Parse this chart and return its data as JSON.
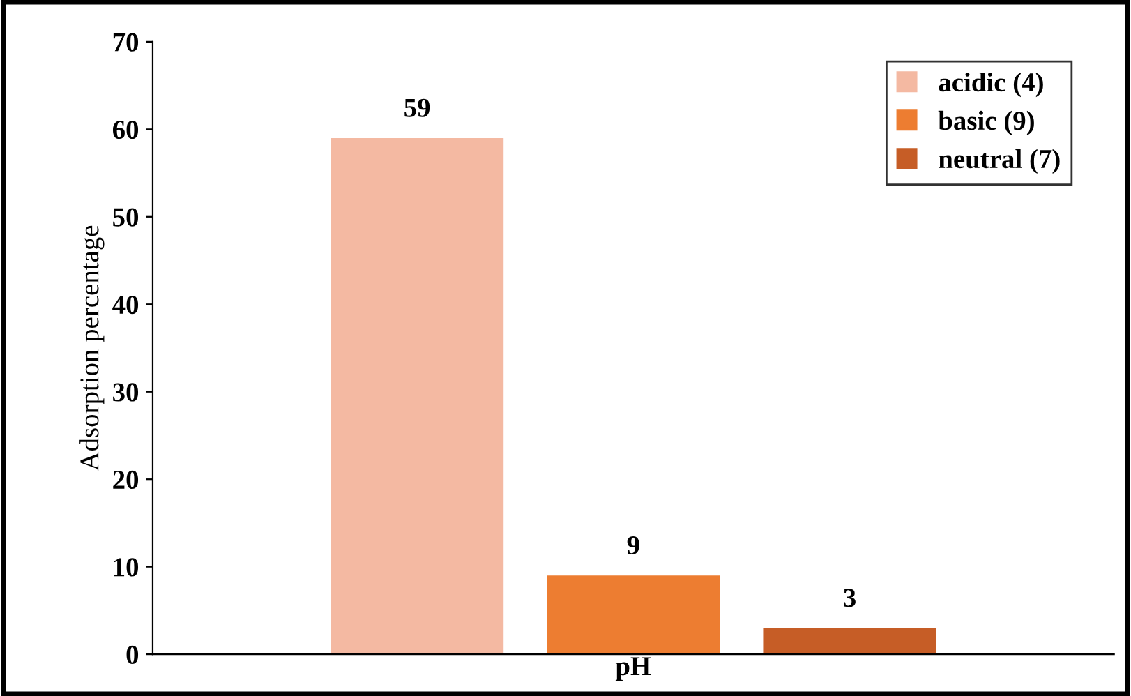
{
  "chart_data": {
    "type": "bar",
    "categories": [
      "pH"
    ],
    "ylabel": "Adsorption percentage",
    "series": [
      {
        "name": "acidic (4)",
        "color": "#f4b9a2",
        "values": [
          59
        ]
      },
      {
        "name": "basic (9)",
        "color": "#ed7d31",
        "values": [
          9
        ]
      },
      {
        "name": "neutral (7)",
        "color": "#c65d26",
        "values": [
          3
        ]
      }
    ],
    "ylim": [
      0,
      70
    ],
    "yticks": [
      0,
      10,
      20,
      30,
      40,
      50,
      60,
      70
    ],
    "data_labels": true,
    "legend": "top right",
    "grid": false
  }
}
